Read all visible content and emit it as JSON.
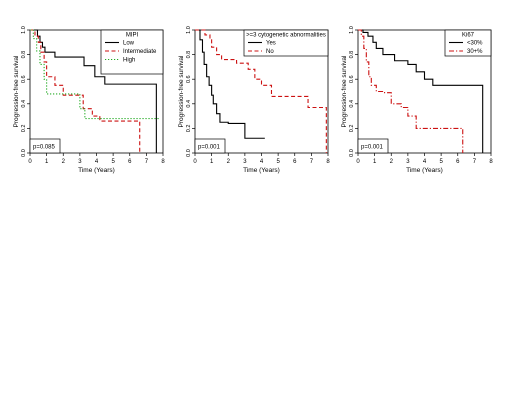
{
  "chart_data": [
    {
      "type": "line",
      "step": true,
      "xlabel": "Time (Years)",
      "ylabel": "Progression-free survival",
      "xlim": [
        0,
        8
      ],
      "ylim": [
        0,
        1
      ],
      "x_ticks": [
        "0",
        "1",
        "2",
        "3",
        "4",
        "5",
        "6",
        "7",
        "8"
      ],
      "y_ticks": [
        "0.0",
        "0.2",
        "0.4",
        "0.6",
        "0.8",
        "1.0"
      ],
      "legend_title": "MIPI",
      "legend_position": "top-right",
      "pvalue": "p=0.085",
      "series": [
        {
          "name": "Low",
          "color": "#000000",
          "dash": "solid",
          "points": [
            [
              0,
              1.0
            ],
            [
              0.45,
              0.95
            ],
            [
              0.6,
              0.9
            ],
            [
              0.75,
              0.86
            ],
            [
              0.9,
              0.82
            ],
            [
              1.5,
              0.78
            ],
            [
              3.25,
              0.71
            ],
            [
              3.9,
              0.62
            ],
            [
              4.5,
              0.56
            ],
            [
              7.6,
              0.56
            ],
            [
              7.6,
              0.0
            ]
          ]
        },
        {
          "name": "Intermediate",
          "color": "#cc1111",
          "dash": "dash",
          "points": [
            [
              0,
              1.0
            ],
            [
              0.3,
              0.95
            ],
            [
              0.5,
              0.9
            ],
            [
              0.65,
              0.82
            ],
            [
              0.85,
              0.74
            ],
            [
              1.0,
              0.62
            ],
            [
              1.5,
              0.55
            ],
            [
              2.0,
              0.47
            ],
            [
              3.2,
              0.36
            ],
            [
              3.75,
              0.3
            ],
            [
              4.2,
              0.26
            ],
            [
              5.6,
              0.26
            ],
            [
              6.6,
              0.26
            ],
            [
              6.6,
              0.0
            ]
          ]
        },
        {
          "name": "High",
          "color": "#22aa22",
          "dash": "dot",
          "points": [
            [
              0,
              1.0
            ],
            [
              0.2,
              0.93
            ],
            [
              0.4,
              0.83
            ],
            [
              0.6,
              0.72
            ],
            [
              0.85,
              0.6
            ],
            [
              1.0,
              0.48
            ],
            [
              2.7,
              0.48
            ],
            [
              3.0,
              0.36
            ],
            [
              3.3,
              0.28
            ],
            [
              7.8,
              0.28
            ]
          ]
        }
      ]
    },
    {
      "type": "line",
      "step": true,
      "xlabel": "Time (Years)",
      "ylabel": "Progression-free survival",
      "xlim": [
        0,
        8
      ],
      "ylim": [
        0,
        1
      ],
      "x_ticks": [
        "0",
        "1",
        "2",
        "3",
        "4",
        "5",
        "6",
        "7",
        "8"
      ],
      "y_ticks": [
        "0.0",
        "0.2",
        "0.4",
        "0.6",
        "0.8",
        "1.0"
      ],
      "legend_title": ">=3 cytogenetic abnormalities",
      "legend_position": "top-right",
      "pvalue": "p=0.001",
      "series": [
        {
          "name": "Yes",
          "color": "#000000",
          "dash": "solid",
          "points": [
            [
              0,
              1.0
            ],
            [
              0.3,
              0.92
            ],
            [
              0.45,
              0.82
            ],
            [
              0.55,
              0.72
            ],
            [
              0.7,
              0.62
            ],
            [
              0.85,
              0.55
            ],
            [
              1.0,
              0.47
            ],
            [
              1.1,
              0.4
            ],
            [
              1.3,
              0.32
            ],
            [
              1.5,
              0.25
            ],
            [
              2.0,
              0.24
            ],
            [
              3.0,
              0.12
            ],
            [
              4.2,
              0.12
            ]
          ]
        },
        {
          "name": "No",
          "color": "#cc1111",
          "dash": "dash",
          "points": [
            [
              0,
              1.0
            ],
            [
              0.6,
              0.96
            ],
            [
              0.9,
              0.92
            ],
            [
              1.0,
              0.86
            ],
            [
              1.3,
              0.8
            ],
            [
              1.6,
              0.76
            ],
            [
              2.5,
              0.73
            ],
            [
              3.2,
              0.68
            ],
            [
              3.6,
              0.6
            ],
            [
              4.0,
              0.55
            ],
            [
              4.6,
              0.46
            ],
            [
              6.6,
              0.46
            ],
            [
              6.8,
              0.37
            ],
            [
              7.9,
              0.37
            ],
            [
              7.9,
              0.0
            ]
          ]
        }
      ]
    },
    {
      "type": "line",
      "step": true,
      "xlabel": "Time (Years)",
      "ylabel": "Progression-free survival",
      "xlim": [
        0,
        8
      ],
      "ylim": [
        0,
        1
      ],
      "x_ticks": [
        "0",
        "1",
        "2",
        "3",
        "4",
        "5",
        "6",
        "7",
        "8"
      ],
      "y_ticks": [
        "0.0",
        "0.2",
        "0.4",
        "0.6",
        "0.8",
        "1.0"
      ],
      "legend_title": "Ki67",
      "legend_position": "top-right",
      "pvalue": "p=0.001",
      "series": [
        {
          "name": "<30%",
          "color": "#000000",
          "dash": "solid",
          "points": [
            [
              0,
              1.0
            ],
            [
              0.3,
              0.98
            ],
            [
              0.6,
              0.95
            ],
            [
              0.9,
              0.9
            ],
            [
              1.1,
              0.85
            ],
            [
              1.5,
              0.8
            ],
            [
              2.2,
              0.75
            ],
            [
              3.0,
              0.72
            ],
            [
              3.5,
              0.66
            ],
            [
              4.0,
              0.6
            ],
            [
              4.5,
              0.55
            ],
            [
              7.5,
              0.55
            ],
            [
              7.5,
              0.0
            ]
          ]
        },
        {
          "name": "30+%",
          "color": "#cc1111",
          "dash": "dashdot",
          "points": [
            [
              0,
              1.0
            ],
            [
              0.2,
              0.95
            ],
            [
              0.35,
              0.85
            ],
            [
              0.5,
              0.74
            ],
            [
              0.65,
              0.62
            ],
            [
              0.8,
              0.55
            ],
            [
              1.1,
              0.5
            ],
            [
              1.6,
              0.49
            ],
            [
              2.0,
              0.4
            ],
            [
              2.6,
              0.37
            ],
            [
              3.0,
              0.3
            ],
            [
              3.5,
              0.2
            ],
            [
              5.0,
              0.2
            ],
            [
              6.3,
              0.2
            ],
            [
              6.3,
              0.0
            ]
          ]
        }
      ]
    }
  ]
}
